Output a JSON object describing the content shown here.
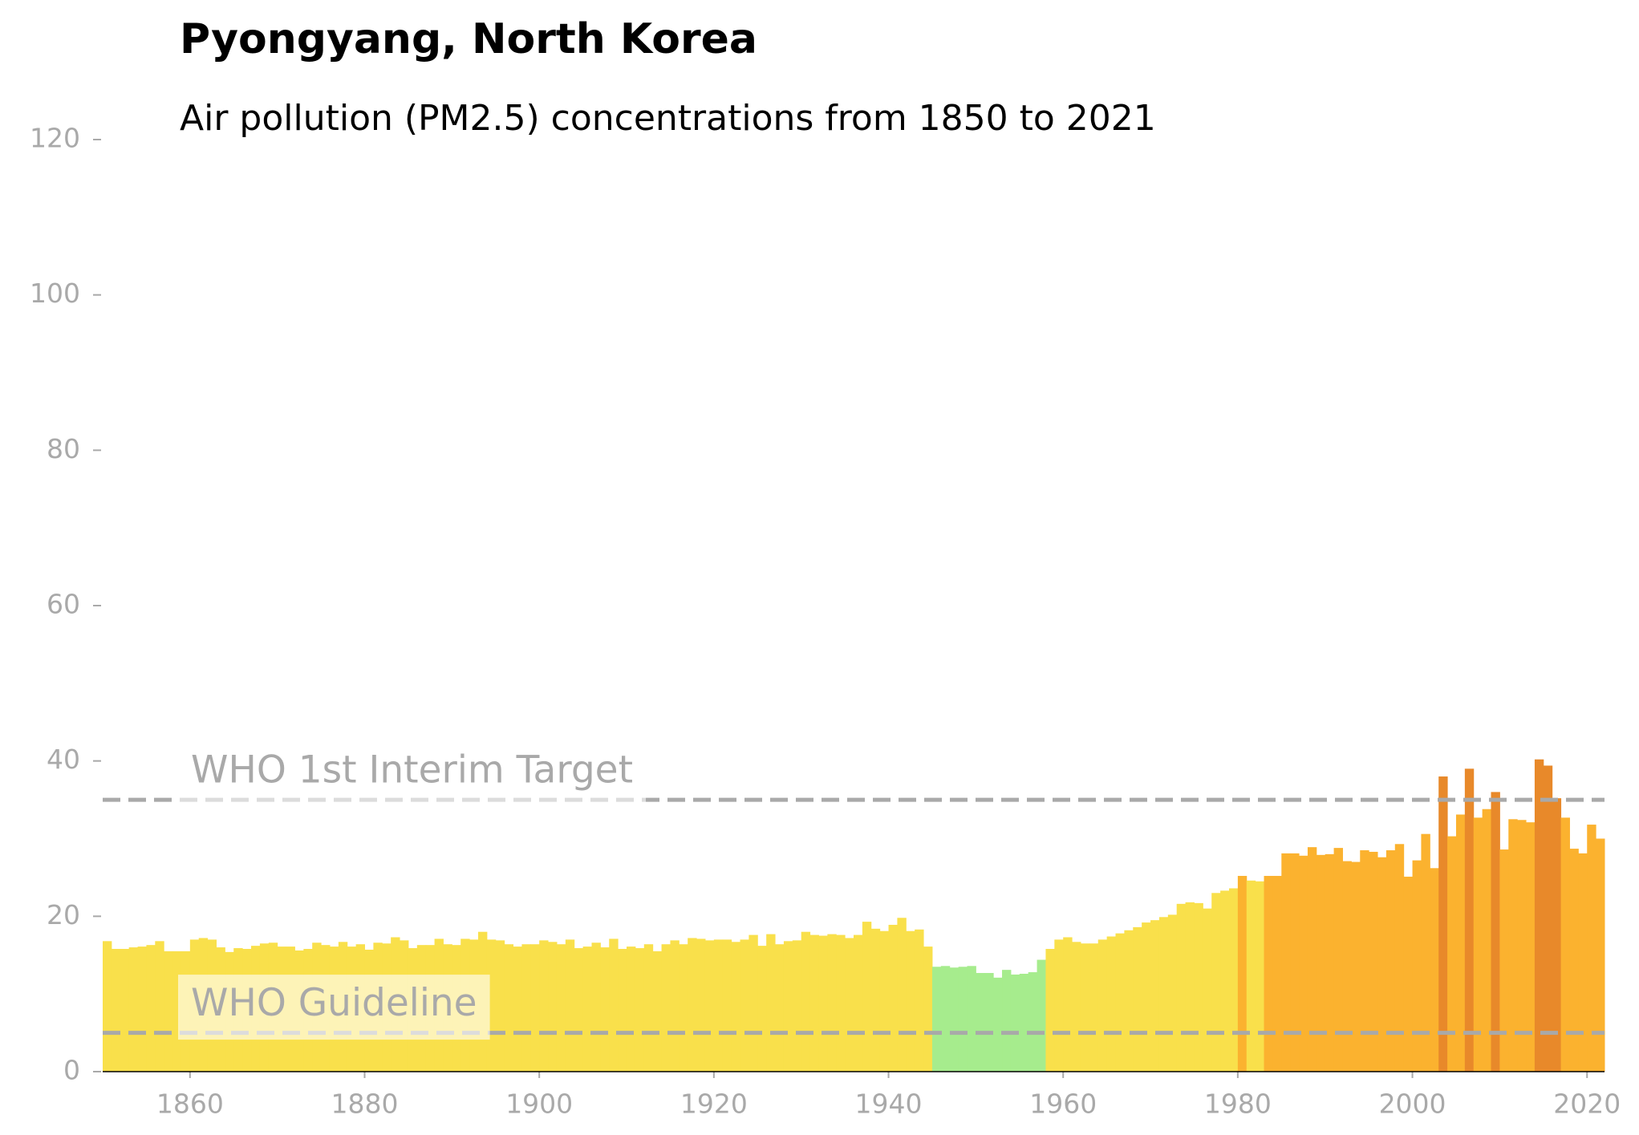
{
  "chart_data": {
    "type": "bar",
    "title": "Pyongyang, North Korea",
    "subtitle": "Air pollution (PM2.5) concentrations from 1850 to 2021",
    "x": [
      1850,
      1851,
      1852,
      1853,
      1854,
      1855,
      1856,
      1857,
      1858,
      1859,
      1860,
      1861,
      1862,
      1863,
      1864,
      1865,
      1866,
      1867,
      1868,
      1869,
      1870,
      1871,
      1872,
      1873,
      1874,
      1875,
      1876,
      1877,
      1878,
      1879,
      1880,
      1881,
      1882,
      1883,
      1884,
      1885,
      1886,
      1887,
      1888,
      1889,
      1890,
      1891,
      1892,
      1893,
      1894,
      1895,
      1896,
      1897,
      1898,
      1899,
      1900,
      1901,
      1902,
      1903,
      1904,
      1905,
      1906,
      1907,
      1908,
      1909,
      1910,
      1911,
      1912,
      1913,
      1914,
      1915,
      1916,
      1917,
      1918,
      1919,
      1920,
      1921,
      1922,
      1923,
      1924,
      1925,
      1926,
      1927,
      1928,
      1929,
      1930,
      1931,
      1932,
      1933,
      1934,
      1935,
      1936,
      1937,
      1938,
      1939,
      1940,
      1941,
      1942,
      1943,
      1944,
      1945,
      1946,
      1947,
      1948,
      1949,
      1950,
      1951,
      1952,
      1953,
      1954,
      1955,
      1956,
      1957,
      1958,
      1959,
      1960,
      1961,
      1962,
      1963,
      1964,
      1965,
      1966,
      1967,
      1968,
      1969,
      1970,
      1971,
      1972,
      1973,
      1974,
      1975,
      1976,
      1977,
      1978,
      1979,
      1980,
      1981,
      1982,
      1983,
      1984,
      1985,
      1986,
      1987,
      1988,
      1989,
      1990,
      1991,
      1992,
      1993,
      1994,
      1995,
      1996,
      1997,
      1998,
      1999,
      2000,
      2001,
      2002,
      2003,
      2004,
      2005,
      2006,
      2007,
      2008,
      2009,
      2010,
      2011,
      2012,
      2013,
      2014,
      2015,
      2016,
      2017,
      2018,
      2019,
      2020,
      2021
    ],
    "values": [
      16.8,
      15.8,
      15.8,
      16.0,
      16.1,
      16.3,
      16.8,
      15.5,
      15.5,
      15.5,
      17.0,
      17.2,
      17.0,
      16.0,
      15.4,
      15.9,
      15.8,
      16.2,
      16.5,
      16.6,
      16.1,
      16.1,
      15.6,
      15.8,
      16.6,
      16.3,
      16.1,
      16.7,
      16.1,
      16.4,
      15.7,
      16.6,
      16.5,
      17.3,
      16.9,
      15.9,
      16.3,
      16.3,
      17.1,
      16.4,
      16.3,
      17.1,
      17.0,
      18.0,
      17.0,
      16.9,
      16.4,
      16.1,
      16.4,
      16.4,
      16.9,
      16.7,
      16.4,
      17.0,
      15.9,
      16.1,
      16.6,
      16.0,
      17.1,
      15.8,
      16.1,
      15.9,
      16.4,
      15.5,
      16.4,
      16.9,
      16.4,
      17.2,
      17.1,
      16.9,
      17.0,
      17.0,
      16.7,
      17.0,
      17.6,
      16.2,
      17.7,
      16.4,
      16.8,
      16.9,
      18.0,
      17.6,
      17.5,
      17.7,
      17.6,
      17.2,
      17.6,
      19.3,
      18.4,
      18.1,
      18.9,
      19.8,
      18.1,
      18.3,
      16.1,
      13.5,
      13.6,
      13.4,
      13.5,
      13.6,
      12.7,
      12.7,
      12.1,
      13.1,
      12.5,
      12.6,
      12.8,
      14.4,
      15.8,
      17.0,
      17.3,
      16.7,
      16.5,
      16.5,
      17.0,
      17.4,
      17.8,
      18.2,
      18.6,
      19.2,
      19.5,
      19.9,
      20.2,
      21.6,
      21.8,
      21.7,
      21.0,
      23.0,
      23.3,
      23.6,
      25.2,
      24.6,
      24.5,
      25.2,
      25.2,
      28.1,
      28.1,
      27.8,
      28.9,
      27.9,
      28.0,
      28.8,
      27.1,
      27.0,
      28.5,
      28.3,
      27.6,
      28.5,
      29.3,
      25.1,
      27.2,
      30.6,
      26.2,
      38.0,
      30.3,
      33.1,
      39.0,
      32.7,
      33.8,
      36.0,
      28.6,
      32.5,
      32.4,
      32.1,
      40.2,
      39.4,
      35.2,
      32.7,
      28.7,
      28.1,
      31.8,
      30.0
    ],
    "colors": [
      "#f9e04b",
      "#f9e04b",
      "#f9e04b",
      "#f9e04b",
      "#f9e04b",
      "#f9e04b",
      "#f9e04b",
      "#f9e04b",
      "#f9e04b",
      "#f9e04b",
      "#f9e04b",
      "#f9e04b",
      "#f9e04b",
      "#f9e04b",
      "#f9e04b",
      "#f9e04b",
      "#f9e04b",
      "#f9e04b",
      "#f9e04b",
      "#f9e04b",
      "#f9e04b",
      "#f9e04b",
      "#f9e04b",
      "#f9e04b",
      "#f9e04b",
      "#f9e04b",
      "#f9e04b",
      "#f9e04b",
      "#f9e04b",
      "#f9e04b",
      "#f9e04b",
      "#f9e04b",
      "#f9e04b",
      "#f9e04b",
      "#f9e04b",
      "#f9e04b",
      "#f9e04b",
      "#f9e04b",
      "#f9e04b",
      "#f9e04b",
      "#f9e04b",
      "#f9e04b",
      "#f9e04b",
      "#f9e04b",
      "#f9e04b",
      "#f9e04b",
      "#f9e04b",
      "#f9e04b",
      "#f9e04b",
      "#f9e04b",
      "#f9e04b",
      "#f9e04b",
      "#f9e04b",
      "#f9e04b",
      "#f9e04b",
      "#f9e04b",
      "#f9e04b",
      "#f9e04b",
      "#f9e04b",
      "#f9e04b",
      "#f9e04b",
      "#f9e04b",
      "#f9e04b",
      "#f9e04b",
      "#f9e04b",
      "#f9e04b",
      "#f9e04b",
      "#f9e04b",
      "#f9e04b",
      "#f9e04b",
      "#f9e04b",
      "#f9e04b",
      "#f9e04b",
      "#f9e04b",
      "#f9e04b",
      "#f9e04b",
      "#f9e04b",
      "#f9e04b",
      "#f9e04b",
      "#f9e04b",
      "#f9e04b",
      "#f9e04b",
      "#f9e04b",
      "#f9e04b",
      "#f9e04b",
      "#f9e04b",
      "#f9e04b",
      "#f9e04b",
      "#f9e04b",
      "#f9e04b",
      "#f9e04b",
      "#f9e04b",
      "#f9e04b",
      "#f9e04b",
      "#f9e04b",
      "#a6ec8d",
      "#a6ec8d",
      "#a6ec8d",
      "#a6ec8d",
      "#a6ec8d",
      "#a6ec8d",
      "#a6ec8d",
      "#a6ec8d",
      "#a6ec8d",
      "#a6ec8d",
      "#a6ec8d",
      "#a6ec8d",
      "#a6ec8d",
      "#f9e04b",
      "#f9e04b",
      "#f9e04b",
      "#f9e04b",
      "#f9e04b",
      "#f9e04b",
      "#f9e04b",
      "#f9e04b",
      "#f9e04b",
      "#f9e04b",
      "#f9e04b",
      "#f9e04b",
      "#f9e04b",
      "#f9e04b",
      "#f9e04b",
      "#f9e04b",
      "#f9e04b",
      "#f9e04b",
      "#f9e04b",
      "#f9e04b",
      "#f9e04b",
      "#f9e04b",
      "#fbb22f",
      "#f9e04b",
      "#f9e04b",
      "#fbb22f",
      "#fbb22f",
      "#fbb22f",
      "#fbb22f",
      "#fbb22f",
      "#fbb22f",
      "#fbb22f",
      "#fbb22f",
      "#fbb22f",
      "#fbb22f",
      "#fbb22f",
      "#fbb22f",
      "#fbb22f",
      "#fbb22f",
      "#fbb22f",
      "#fbb22f",
      "#fbb22f",
      "#fbb22f",
      "#fbb22f",
      "#fbb22f",
      "#e8892a",
      "#fbb22f",
      "#fbb22f",
      "#e8892a",
      "#fbb22f",
      "#fbb22f",
      "#e8892a",
      "#fbb22f",
      "#fbb22f",
      "#fbb22f",
      "#fbb22f",
      "#e8892a",
      "#e8892a",
      "#e8892a",
      "#fbb22f",
      "#fbb22f",
      "#fbb22f",
      "#fbb22f",
      "#fbb22f"
    ],
    "xlim": [
      1850,
      2022
    ],
    "xticks": [
      1860,
      1880,
      1900,
      1920,
      1940,
      1960,
      1980,
      2000,
      2020
    ],
    "ylim": [
      0,
      120
    ],
    "yticks": [
      0,
      20,
      40,
      60,
      80,
      100,
      120
    ],
    "reference_lines": [
      {
        "label": "WHO Guideline",
        "value": 5
      },
      {
        "label": "WHO 1st Interim Target",
        "value": 35
      }
    ]
  }
}
